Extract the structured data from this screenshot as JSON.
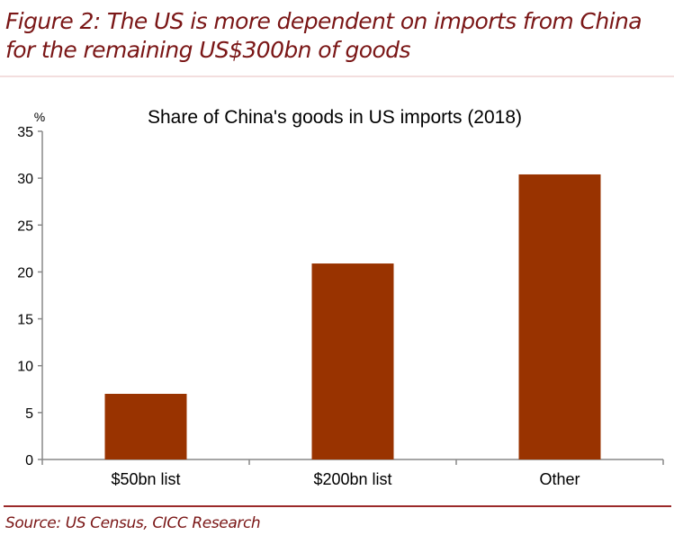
{
  "figure": {
    "title_line1": "Figure 2: The US is more dependent on imports from China",
    "title_line2": "for the remaining US$300bn of goods",
    "source": "Source: US Census, CICC Research"
  },
  "colors": {
    "bar": "#993300",
    "title": "#7a1616",
    "axis": "#888888"
  },
  "chart_data": {
    "type": "bar",
    "title": "Share of China's goods in US imports (2018)",
    "ylabel": "%",
    "categories": [
      "$50bn list",
      "$200bn list",
      "Other"
    ],
    "values": [
      7.0,
      20.9,
      30.4
    ],
    "ylim": [
      0,
      35
    ],
    "yticks": [
      0,
      5,
      10,
      15,
      20,
      25,
      30,
      35
    ],
    "grid": false,
    "legend": "none"
  }
}
